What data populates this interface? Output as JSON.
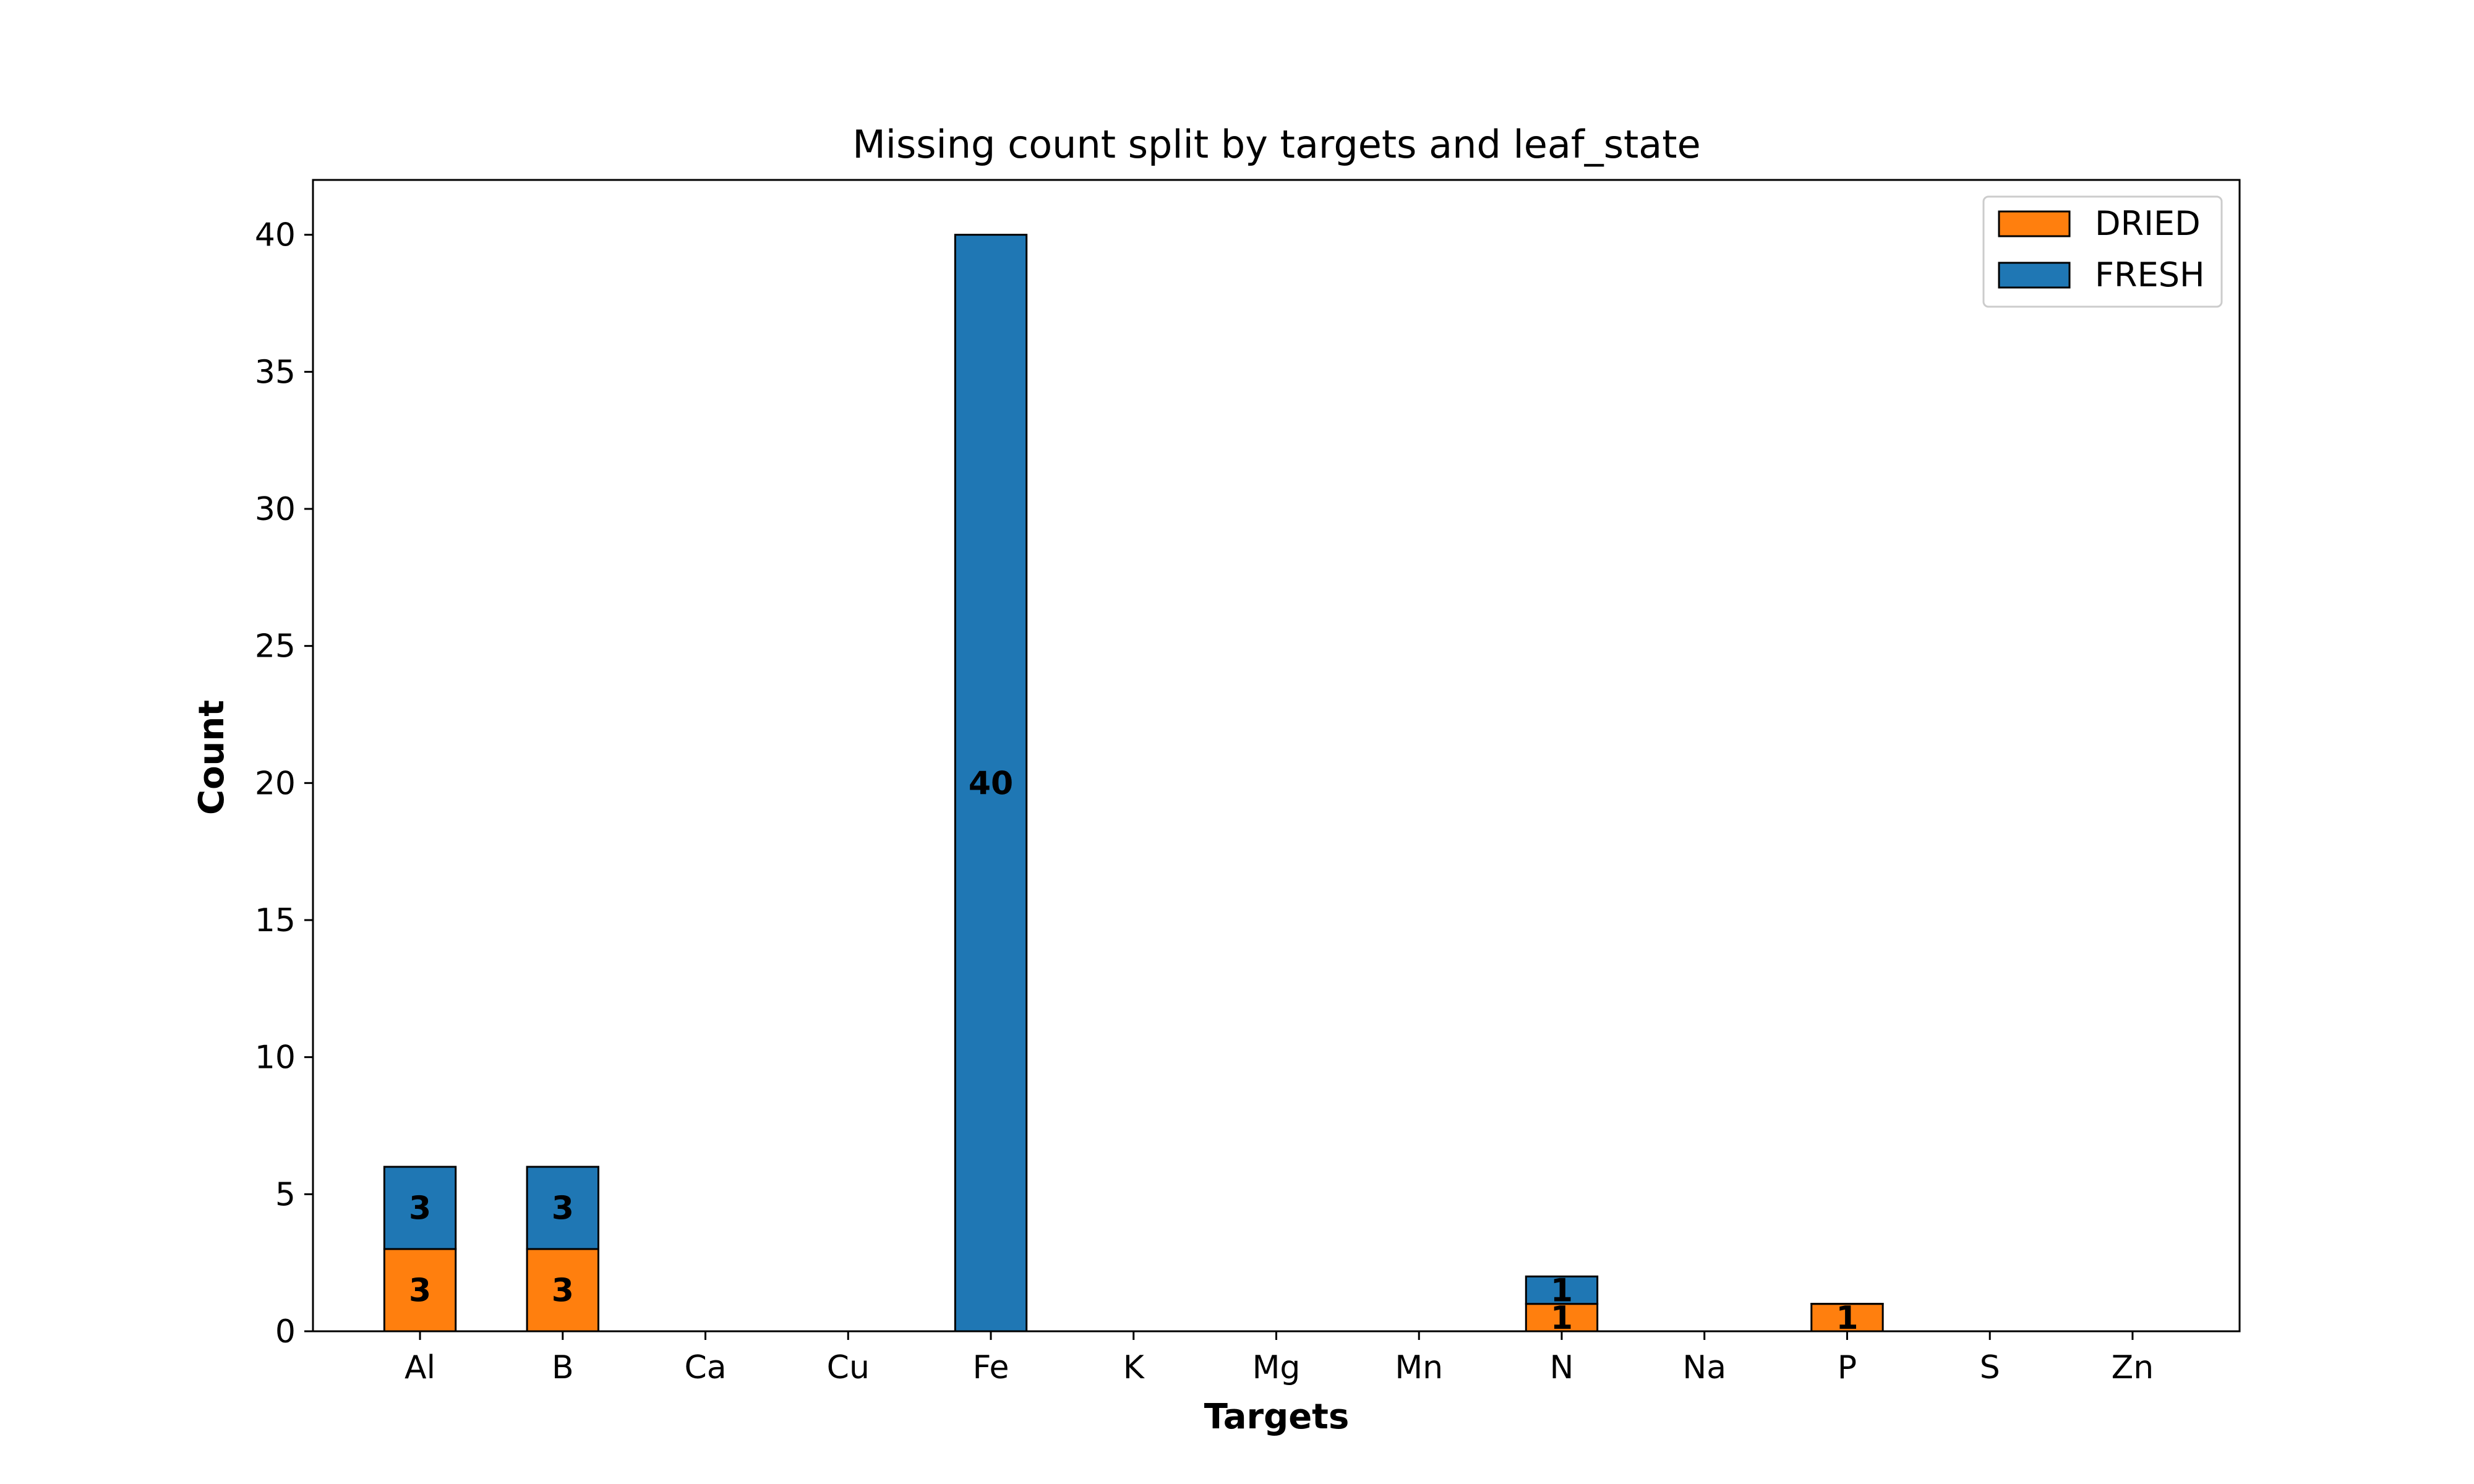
{
  "chart_data": {
    "type": "bar",
    "stacked": true,
    "title": "Missing count split by targets and leaf_state",
    "xlabel": "Targets",
    "ylabel": "Count",
    "categories": [
      "Al",
      "B",
      "Ca",
      "Cu",
      "Fe",
      "K",
      "Mg",
      "Mn",
      "N",
      "Na",
      "P",
      "S",
      "Zn"
    ],
    "series": [
      {
        "name": "DRIED",
        "color": "#ff7f0e",
        "values": [
          3,
          3,
          0,
          0,
          0,
          0,
          0,
          0,
          1,
          0,
          1,
          0,
          0
        ]
      },
      {
        "name": "FRESH",
        "color": "#1f77b4",
        "values": [
          3,
          3,
          0,
          0,
          40,
          0,
          0,
          0,
          1,
          0,
          0,
          0,
          0
        ]
      }
    ],
    "ylim": [
      0,
      42
    ],
    "yticks": [
      0,
      5,
      10,
      15,
      20,
      25,
      30,
      35,
      40
    ],
    "grid": false,
    "legend_position": "top-right"
  }
}
